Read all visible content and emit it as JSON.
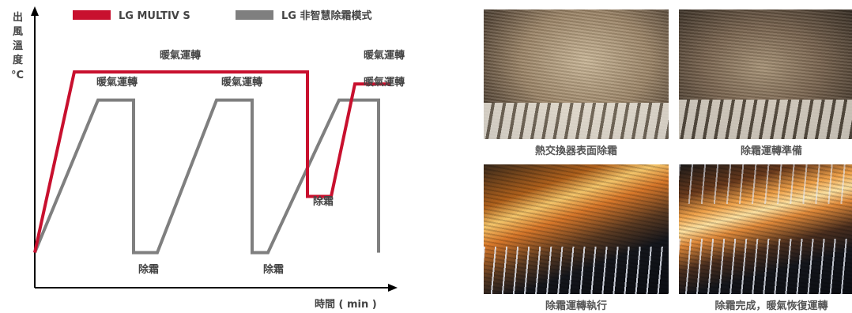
{
  "chart_data": {
    "type": "line",
    "title": "",
    "ylabel": "出風溫度 °C",
    "xlabel": "時間 ( min )",
    "legend": "top",
    "series": [
      {
        "name": "LG MULTIV S",
        "color": "#c8102e",
        "points": [
          [
            0,
            0.1
          ],
          [
            1.0,
            1.0
          ],
          [
            6.9,
            1.0
          ],
          [
            6.9,
            0.38
          ],
          [
            7.5,
            0.38
          ],
          [
            8.1,
            0.94
          ],
          [
            9.0,
            0.94
          ]
        ],
        "labels": [
          "暖氣運轉",
          "除霜",
          "暖氣運轉"
        ]
      },
      {
        "name": "LG 非智慧除霜模式",
        "color": "#7f7f7f",
        "points": [
          [
            0,
            0.1
          ],
          [
            1.6,
            0.86
          ],
          [
            2.5,
            0.86
          ],
          [
            2.5,
            0.1
          ],
          [
            3.1,
            0.1
          ],
          [
            4.6,
            0.86
          ],
          [
            5.5,
            0.86
          ],
          [
            5.5,
            0.1
          ],
          [
            5.9,
            0.1
          ],
          [
            7.7,
            0.86
          ],
          [
            8.7,
            0.86
          ],
          [
            8.7,
            0.1
          ]
        ],
        "labels": [
          "暖氣運轉",
          "除霜",
          "暖氣運轉",
          "除霜",
          "暖氣運轉"
        ]
      }
    ],
    "ylabel_lines": [
      "出",
      "風",
      "溫",
      "度",
      "°C"
    ]
  },
  "photos": [
    {
      "caption": "熱交換器表面除霜"
    },
    {
      "caption": "除霜運轉準備"
    },
    {
      "caption": "除霜運轉執行"
    },
    {
      "caption": "除霜完成，暖氣恢復運轉"
    }
  ]
}
